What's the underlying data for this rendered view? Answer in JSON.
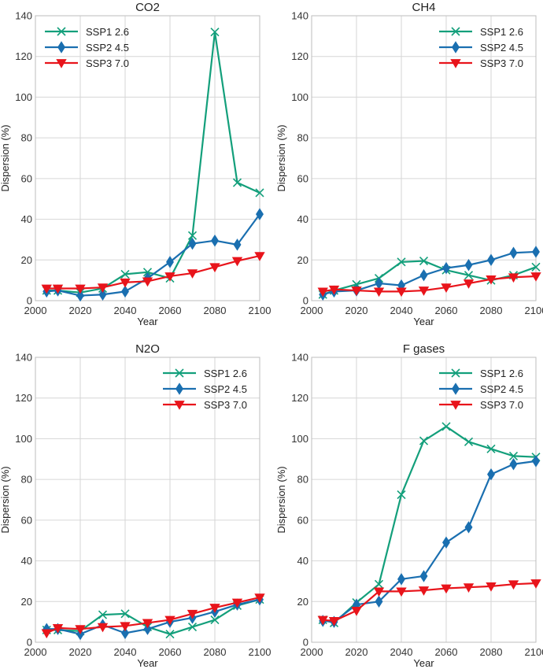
{
  "colors": {
    "ssp1": "#139f7b",
    "ssp2": "#1a6fb0",
    "ssp3": "#e8141b",
    "grid": "#d6d6d6",
    "frame": "#bdbdbd"
  },
  "chart_data": [
    {
      "type": "line",
      "title": "CO2",
      "xlabel": "Year",
      "ylabel": "Dispersion (%)",
      "xlim": [
        2000,
        2100
      ],
      "ylim": [
        0,
        140
      ],
      "xticks": [
        2000,
        2020,
        2040,
        2060,
        2080,
        2100
      ],
      "yticks": [
        0,
        20,
        40,
        60,
        80,
        100,
        120,
        140
      ],
      "grid": true,
      "legend": "top-left",
      "x": [
        2005,
        2010,
        2020,
        2030,
        2040,
        2050,
        2060,
        2070,
        2080,
        2090,
        2100
      ],
      "series": [
        {
          "name": "SSP1 2.6",
          "marker": "x",
          "color": "#139f7b",
          "values": [
            5,
            5,
            4,
            6,
            13,
            14,
            11,
            32,
            132,
            58,
            53
          ]
        },
        {
          "name": "SSP2 4.5",
          "marker": "diamond",
          "color": "#1a6fb0",
          "values": [
            4.5,
            5,
            2.5,
            3,
            4.5,
            11,
            19,
            28,
            29.5,
            27.5,
            42.5
          ]
        },
        {
          "name": "SSP3 7.0",
          "marker": "triangle-down",
          "color": "#e8141b",
          "values": [
            6,
            6,
            6,
            6.5,
            9,
            9.5,
            12,
            13.5,
            16.5,
            19.5,
            22
          ]
        }
      ]
    },
    {
      "type": "line",
      "title": "CH4",
      "xlabel": "Year",
      "ylabel": "Dispersion (%)",
      "xlim": [
        2000,
        2100
      ],
      "ylim": [
        0,
        140
      ],
      "xticks": [
        2000,
        2020,
        2040,
        2060,
        2080,
        2100
      ],
      "yticks": [
        0,
        20,
        40,
        60,
        80,
        100,
        120,
        140
      ],
      "grid": true,
      "legend": "top-right",
      "x": [
        2005,
        2010,
        2020,
        2030,
        2040,
        2050,
        2060,
        2070,
        2080,
        2090,
        2100
      ],
      "series": [
        {
          "name": "SSP1 2.6",
          "marker": "x",
          "color": "#139f7b",
          "values": [
            3,
            5,
            8,
            11,
            19,
            19.5,
            15,
            12.5,
            10,
            12.5,
            16.5
          ]
        },
        {
          "name": "SSP2 4.5",
          "marker": "diamond",
          "color": "#1a6fb0",
          "values": [
            3,
            4.5,
            5,
            8.5,
            7.5,
            12.5,
            16,
            17.5,
            20,
            23.5,
            24
          ]
        },
        {
          "name": "SSP3 7.0",
          "marker": "triangle-down",
          "color": "#e8141b",
          "values": [
            4.5,
            5.5,
            5,
            4.5,
            4.5,
            5,
            6.5,
            8.5,
            10.5,
            11.5,
            12
          ]
        }
      ]
    },
    {
      "type": "line",
      "title": "N2O",
      "xlabel": "Year",
      "ylabel": "Dispersion (%)",
      "xlim": [
        2000,
        2100
      ],
      "ylim": [
        0,
        140
      ],
      "xticks": [
        2000,
        2020,
        2040,
        2060,
        2080,
        2100
      ],
      "yticks": [
        0,
        20,
        40,
        60,
        80,
        100,
        120,
        140
      ],
      "grid": true,
      "legend": "top-right",
      "x": [
        2005,
        2010,
        2020,
        2030,
        2040,
        2050,
        2060,
        2070,
        2080,
        2090,
        2100
      ],
      "series": [
        {
          "name": "SSP1 2.6",
          "marker": "x",
          "color": "#139f7b",
          "values": [
            6,
            6,
            5.5,
            13.5,
            14,
            7.5,
            4,
            7.5,
            11,
            18,
            21
          ]
        },
        {
          "name": "SSP2 4.5",
          "marker": "diamond",
          "color": "#1a6fb0",
          "values": [
            6.5,
            6.5,
            4,
            8.5,
            4.5,
            6.5,
            10,
            12,
            15,
            18.5,
            21
          ]
        },
        {
          "name": "SSP3 7.0",
          "marker": "triangle-down",
          "color": "#e8141b",
          "values": [
            4.5,
            7,
            6.5,
            7.5,
            8,
            9.5,
            11,
            14,
            17,
            19.5,
            22
          ]
        }
      ]
    },
    {
      "type": "line",
      "title": "F gases",
      "xlabel": "Year",
      "ylabel": "Dispersion (%)",
      "xlim": [
        2000,
        2100
      ],
      "ylim": [
        0,
        140
      ],
      "xticks": [
        2000,
        2020,
        2040,
        2060,
        2080,
        2100
      ],
      "yticks": [
        0,
        20,
        40,
        60,
        80,
        100,
        120,
        140
      ],
      "grid": true,
      "legend": "top-right",
      "x": [
        2005,
        2010,
        2020,
        2030,
        2040,
        2050,
        2060,
        2070,
        2080,
        2090,
        2100
      ],
      "series": [
        {
          "name": "SSP1 2.6",
          "marker": "x",
          "color": "#139f7b",
          "values": [
            11,
            9.5,
            19.5,
            28.5,
            72.5,
            99,
            106,
            98.5,
            95,
            91.5,
            91
          ]
        },
        {
          "name": "SSP2 4.5",
          "marker": "diamond",
          "color": "#1a6fb0",
          "values": [
            10.5,
            10,
            18.5,
            20,
            31,
            32.5,
            49,
            56.5,
            82.5,
            87.5,
            89
          ]
        },
        {
          "name": "SSP3 7.0",
          "marker": "triangle-down",
          "color": "#e8141b",
          "values": [
            11,
            10.5,
            15.5,
            25,
            25,
            25.5,
            26.5,
            27,
            27.5,
            28.5,
            29
          ]
        }
      ]
    }
  ]
}
